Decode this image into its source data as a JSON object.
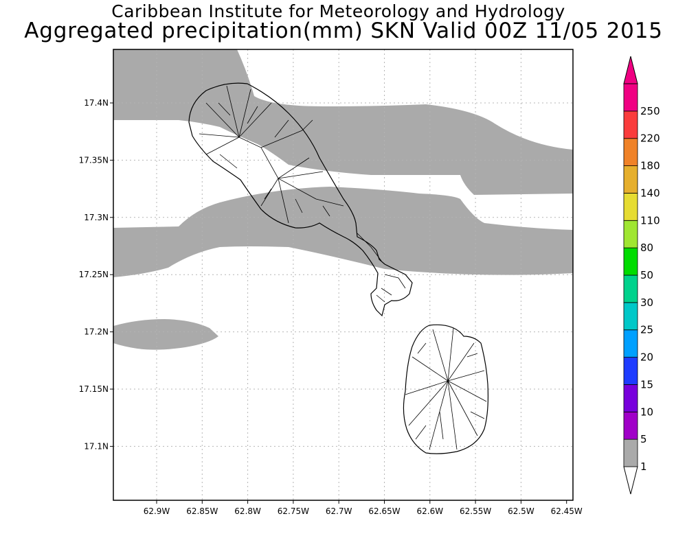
{
  "titles": {
    "line1": "Caribbean Institute for Meteorology and Hydrology",
    "line2": "Aggregated precipitation(mm) SKN Valid 00Z 11/05 2015"
  },
  "map": {
    "lon_ticks": [
      "62.9W",
      "62.85W",
      "62.8W",
      "62.75W",
      "62.7W",
      "62.65W",
      "62.6W",
      "62.55W",
      "62.5W",
      "62.45W"
    ],
    "lat_ticks": [
      "17.4N",
      "17.35N",
      "17.3N",
      "17.25N",
      "17.2N",
      "17.15N",
      "17.1N"
    ],
    "grid": "dotted",
    "precip_band_color": "#aaaaaa",
    "land_outline_color": "#000000"
  },
  "colorbar": {
    "labels": [
      "1",
      "5",
      "10",
      "15",
      "20",
      "25",
      "30",
      "50",
      "80",
      "110",
      "140",
      "180",
      "220",
      "250"
    ],
    "colors": [
      "#aaaaaa",
      "#a000c8",
      "#7800dc",
      "#1e3cff",
      "#00a0ff",
      "#00c8c8",
      "#00d28c",
      "#00dc00",
      "#a0e632",
      "#e6dc32",
      "#e6af2d",
      "#f08228",
      "#fa3c3c",
      "#f00082"
    ]
  }
}
